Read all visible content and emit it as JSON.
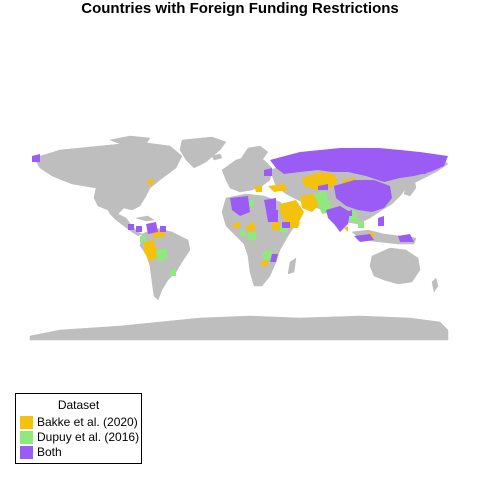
{
  "title": "Countries with Foreign Funding Restrictions",
  "colors": {
    "land": "#bebebe",
    "bakke": "#f4c20d",
    "dupuy": "#90e97c",
    "both": "#9a5cf4",
    "background": "#ffffff"
  },
  "legend": {
    "title": "Dataset",
    "items": [
      {
        "label": "Bakke et al. (2020)",
        "color": "#f4c20d"
      },
      {
        "label": "Dupuy et al. (2016)",
        "color": "#90e97c"
      },
      {
        "label": "Both",
        "color": "#9a5cf4"
      }
    ]
  }
}
